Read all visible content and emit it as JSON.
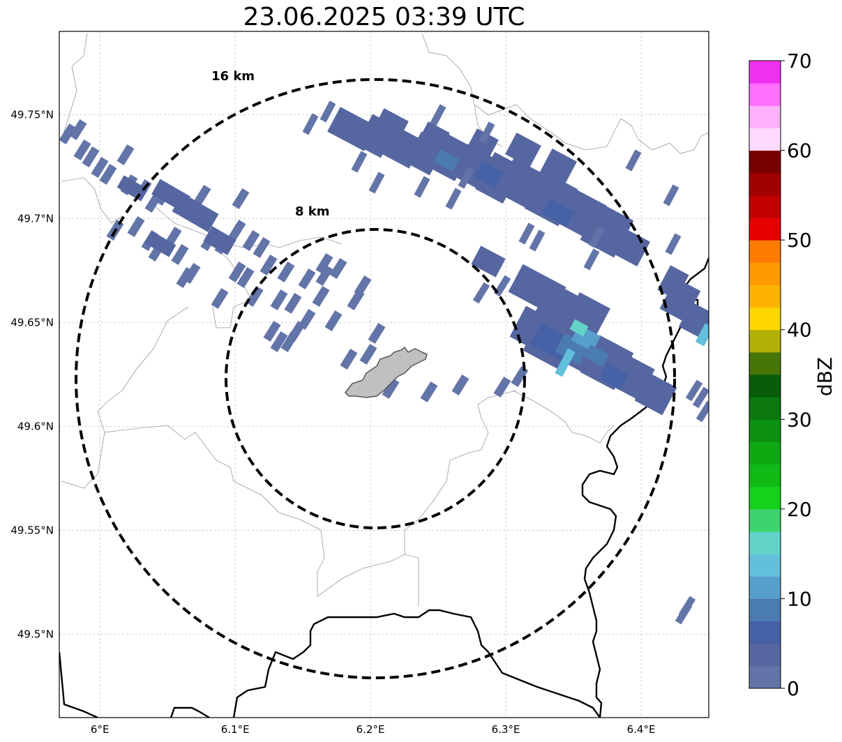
{
  "title": "23.06.2025 03:39 UTC",
  "map": {
    "lon_range": [
      5.97,
      6.45
    ],
    "lat_range": [
      49.46,
      49.79
    ],
    "gridlines": true,
    "lon_ticks": [
      {
        "value": 6.0,
        "label": "6°E"
      },
      {
        "value": 6.1,
        "label": "6.1°E"
      },
      {
        "value": 6.2,
        "label": "6.2°E"
      },
      {
        "value": 6.3,
        "label": "6.3°E"
      },
      {
        "value": 6.4,
        "label": "6.4°E"
      }
    ],
    "lat_ticks": [
      {
        "value": 49.5,
        "label": "49.5°N"
      },
      {
        "value": 49.55,
        "label": "49.55°N"
      },
      {
        "value": 49.6,
        "label": "49.6°N"
      },
      {
        "value": 49.65,
        "label": "49.65°N"
      },
      {
        "value": 49.7,
        "label": "49.7°N"
      },
      {
        "value": 49.75,
        "label": "49.75°N"
      }
    ],
    "center": {
      "lon": 6.203,
      "lat": 49.623
    },
    "range_rings": [
      {
        "label": "8 km",
        "radius_km": 8
      },
      {
        "label": "16 km",
        "radius_km": 16
      }
    ],
    "colors": {
      "border": "#000000",
      "admin_line": "#999999",
      "grid": "#bbbbbb",
      "city_fill": "#c0c0c0",
      "city_edge": "#555555"
    }
  },
  "colorbar": {
    "label": "dBZ",
    "min": 0,
    "max": 70,
    "ticks": [
      0,
      10,
      20,
      30,
      40,
      50,
      60,
      70
    ],
    "colors": [
      "#6374a8",
      "#5666a0",
      "#4661a6",
      "#4a7bb1",
      "#579fcb",
      "#62c0dc",
      "#61d4c7",
      "#3dd46d",
      "#15d11c",
      "#10bb15",
      "#0da913",
      "#0b9010",
      "#0a780e",
      "#075d0a",
      "#467508",
      "#b0b007",
      "#fed600",
      "#ffb300",
      "#ff9a00",
      "#ff7b00",
      "#e50000",
      "#c20000",
      "#a00000",
      "#7a0000",
      "#ffdafe",
      "#ffb1fe",
      "#ff6ffe",
      "#f031f0"
    ]
  }
}
